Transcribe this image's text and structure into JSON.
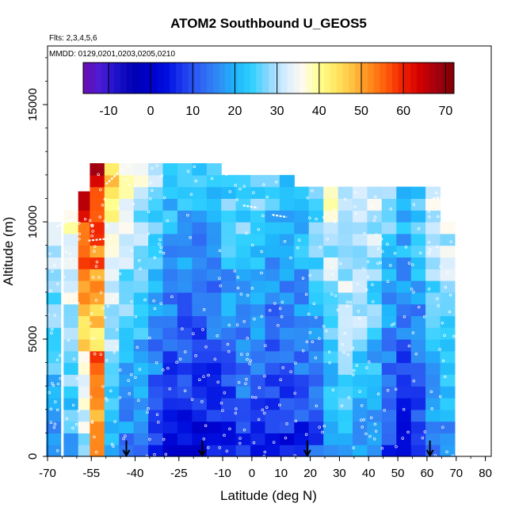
{
  "chart_data": {
    "type": "heatmap",
    "title": "ATOM2 Southbound U_GEOS5",
    "flights_label": "Flts: 2,3,4,5,6",
    "dates_label": "MMDD: 0129,0201,0203,0205,0210",
    "xlabel": "Latitude (deg N)",
    "ylabel": "Altitude (m)",
    "xlim": [
      -70,
      82
    ],
    "ylim": [
      0,
      17500
    ],
    "x_ticks": [
      -70,
      -55,
      -40,
      -25,
      -10,
      0,
      10,
      20,
      30,
      40,
      50,
      60,
      70,
      80
    ],
    "y_ticks": [
      0,
      5000,
      10000,
      15000
    ],
    "colorbar": {
      "min": -16,
      "max": 72,
      "ticks": [
        -10,
        0,
        10,
        20,
        30,
        40,
        50,
        60,
        70
      ],
      "colors": [
        "#6a0dad",
        "#4b1bd6",
        "#1c10c8",
        "#0000b4",
        "#0000cc",
        "#0010e0",
        "#1f3ef0",
        "#2f64f4",
        "#2f8cf6",
        "#1fb4fb",
        "#2ed0ff",
        "#8ed8ff",
        "#d6edff",
        "#fffaf0",
        "#ffff90",
        "#ffe860",
        "#ffc040",
        "#ff8c1c",
        "#ff5a0a",
        "#f02000",
        "#d00000",
        "#a00010",
        "#800000"
      ]
    },
    "columns": [
      {
        "lat": -68,
        "top": 10000,
        "base": 17
      },
      {
        "lat": -62,
        "top": 10500,
        "base": 20
      },
      {
        "lat": -57,
        "top": 11300,
        "base": 30
      },
      {
        "lat": -53,
        "top": 12500,
        "base": 50
      },
      {
        "lat": -48,
        "top": 12500,
        "base": 22
      },
      {
        "lat": -43,
        "top": 12500,
        "base": 15
      },
      {
        "lat": -38,
        "top": 12500,
        "base": 12
      },
      {
        "lat": -33,
        "top": 12500,
        "base": 8
      },
      {
        "lat": -28,
        "top": 12500,
        "base": 4
      },
      {
        "lat": -23,
        "top": 12500,
        "base": 2
      },
      {
        "lat": -18,
        "top": 12500,
        "base": 1
      },
      {
        "lat": -13,
        "top": 12500,
        "base": 3
      },
      {
        "lat": -8,
        "top": 12000,
        "base": 6
      },
      {
        "lat": -3,
        "top": 12000,
        "base": 8
      },
      {
        "lat": 2,
        "top": 12000,
        "base": 7
      },
      {
        "lat": 7,
        "top": 12000,
        "base": 5
      },
      {
        "lat": 12,
        "top": 12000,
        "base": 4
      },
      {
        "lat": 17,
        "top": 11500,
        "base": 6
      },
      {
        "lat": 22,
        "top": 11500,
        "base": 10
      },
      {
        "lat": 27,
        "top": 11500,
        "base": 16
      },
      {
        "lat": 32,
        "top": 11500,
        "base": 20
      },
      {
        "lat": 37,
        "top": 11500,
        "base": 18
      },
      {
        "lat": 42,
        "top": 11500,
        "base": 14
      },
      {
        "lat": 47,
        "top": 11500,
        "base": 8
      },
      {
        "lat": 52,
        "top": 11500,
        "base": 4
      },
      {
        "lat": 57,
        "top": 11500,
        "base": 6
      },
      {
        "lat": 62,
        "top": 11500,
        "base": 14
      },
      {
        "lat": 67,
        "top": 10000,
        "base": 16
      }
    ],
    "markers": [
      -43,
      -17,
      19,
      61
    ]
  }
}
